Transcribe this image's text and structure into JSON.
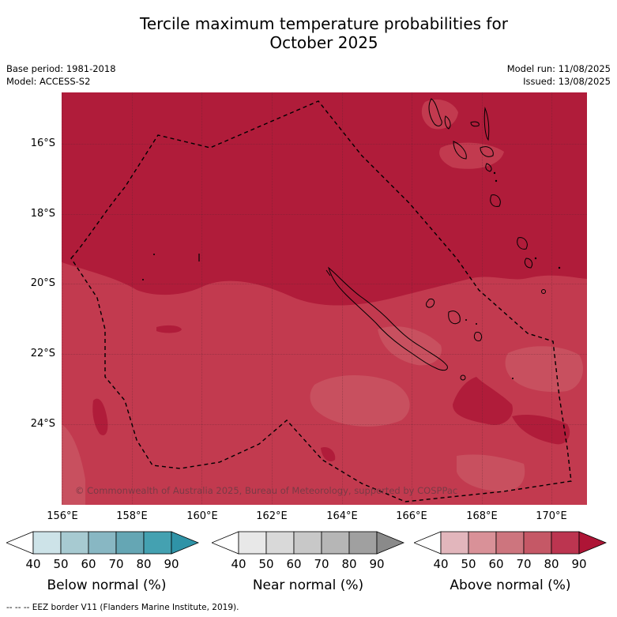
{
  "title_line1": "Tercile maximum temperature probabilities for",
  "title_line2": "October 2025",
  "base_period": "Base period: 1981-2018",
  "model": "Model: ACCESS-S2",
  "model_run": "Model run: 11/08/2025",
  "issued": "Issued: 13/08/2025",
  "map": {
    "lon_range": [
      155,
      171
    ],
    "lat_range": [
      -26.8,
      -14.9
    ],
    "lat_ticks": [
      "16°S",
      "18°S",
      "20°S",
      "22°S",
      "24°S"
    ],
    "lon_ticks": [
      "156°E",
      "158°E",
      "160°E",
      "162°E",
      "164°E",
      "166°E",
      "168°E",
      "170°E"
    ],
    "dominant_category": "Above normal",
    "dominant_range": "80-90",
    "secondary_range": "70-80",
    "colors": {
      "above_80_90": "#b01c3a",
      "above_70_80": "#c23a4f",
      "above_60_70": "#c8505f",
      "coast": "#000000",
      "eez": "#000000"
    },
    "copyright": "© Commonwealth of Australia 2025, Bureau of Meteorology, supported by COSPPac"
  },
  "colorbars": [
    {
      "label": "Below normal (%)",
      "ticks": [
        "40",
        "50",
        "60",
        "70",
        "80",
        "90"
      ],
      "colors": [
        "#ffffff",
        "#cde3e8",
        "#a7cad1",
        "#88b7c3",
        "#65a6b4",
        "#44a1b1",
        "#2f93a7"
      ]
    },
    {
      "label": "Near normal (%)",
      "ticks": [
        "40",
        "50",
        "60",
        "70",
        "80",
        "90"
      ],
      "colors": [
        "#ffffff",
        "#e8e8e8",
        "#d9d9d9",
        "#c8c8c8",
        "#b6b6b6",
        "#a0a0a0",
        "#8a8a8a"
      ]
    },
    {
      "label": "Above normal (%)",
      "ticks": [
        "40",
        "50",
        "60",
        "70",
        "80",
        "90"
      ],
      "colors": [
        "#ffffff",
        "#e2b6bc",
        "#d99198",
        "#cd757e",
        "#c55866",
        "#bc3550",
        "#ae1536"
      ]
    }
  ],
  "eez_note": "--  --  -- EEZ border V11 (Flanders Marine Institute, 2019)."
}
